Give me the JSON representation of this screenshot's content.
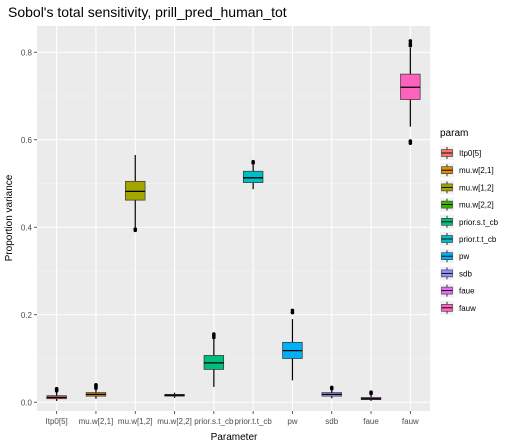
{
  "chart_data": {
    "type": "box",
    "title": "Sobol's total sensitivity,  prill_pred_human_tot",
    "xlabel": "Parameter",
    "ylabel": "Proportion variance",
    "ylim": [
      -0.02,
      0.86
    ],
    "yticks": [
      "0.0",
      "0.2",
      "0.4",
      "0.6",
      "0.8"
    ],
    "grid": true,
    "legend": {
      "title": "param",
      "position": "right"
    },
    "categories": [
      "Itp0[5]",
      "mu.w[2,1]",
      "mu.w[1,2]",
      "mu.w[2,2]",
      "prior.s.t_cb",
      "prior.t.t_cb",
      "pw",
      "sdb",
      "faue",
      "fauw"
    ],
    "boxes": [
      {
        "name": "Itp0[5]",
        "color": "#F8766D",
        "whisker_low": 0.003,
        "q1": 0.008,
        "median": 0.011,
        "q3": 0.015,
        "whisker_high": 0.024,
        "outliers": [
          0.026,
          0.028,
          0.031
        ]
      },
      {
        "name": "mu.w[2,1]",
        "color": "#D89000",
        "whisker_low": 0.008,
        "q1": 0.014,
        "median": 0.018,
        "q3": 0.022,
        "whisker_high": 0.03,
        "outliers": [
          0.032,
          0.035,
          0.038,
          0.04
        ]
      },
      {
        "name": "mu.w[1,2]",
        "color": "#A3A500",
        "whisker_low": 0.4,
        "q1": 0.462,
        "median": 0.482,
        "q3": 0.505,
        "whisker_high": 0.565,
        "outliers": [
          0.393,
          0.396
        ]
      },
      {
        "name": "mu.w[2,2]",
        "color": "#39B600",
        "whisker_low": 0.01,
        "q1": 0.014,
        "median": 0.016,
        "q3": 0.018,
        "whisker_high": 0.022,
        "outliers": []
      },
      {
        "name": "prior.s.t_cb",
        "color": "#00BF7D",
        "whisker_low": 0.035,
        "q1": 0.075,
        "median": 0.09,
        "q3": 0.107,
        "whisker_high": 0.145,
        "outliers": [
          0.148,
          0.152,
          0.156
        ]
      },
      {
        "name": "prior.t.t_cb",
        "color": "#00BFC4",
        "whisker_low": 0.487,
        "q1": 0.502,
        "median": 0.513,
        "q3": 0.528,
        "whisker_high": 0.543,
        "outliers": [
          0.547,
          0.55
        ]
      },
      {
        "name": "pw",
        "color": "#00B0F6",
        "whisker_low": 0.05,
        "q1": 0.1,
        "median": 0.118,
        "q3": 0.137,
        "whisker_high": 0.19,
        "outliers": [
          0.205,
          0.21
        ]
      },
      {
        "name": "sdb",
        "color": "#9590FF",
        "whisker_low": 0.009,
        "q1": 0.014,
        "median": 0.018,
        "q3": 0.022,
        "whisker_high": 0.028,
        "outliers": [
          0.031,
          0.034
        ]
      },
      {
        "name": "faue",
        "color": "#E76BF3",
        "whisker_low": 0.003,
        "q1": 0.006,
        "median": 0.008,
        "q3": 0.011,
        "whisker_high": 0.017,
        "outliers": [
          0.02,
          0.023
        ]
      },
      {
        "name": "fauw",
        "color": "#FF62BC",
        "whisker_low": 0.63,
        "q1": 0.692,
        "median": 0.72,
        "q3": 0.75,
        "whisker_high": 0.81,
        "outliers": [
          0.592,
          0.597,
          0.815,
          0.82,
          0.826
        ]
      }
    ]
  }
}
